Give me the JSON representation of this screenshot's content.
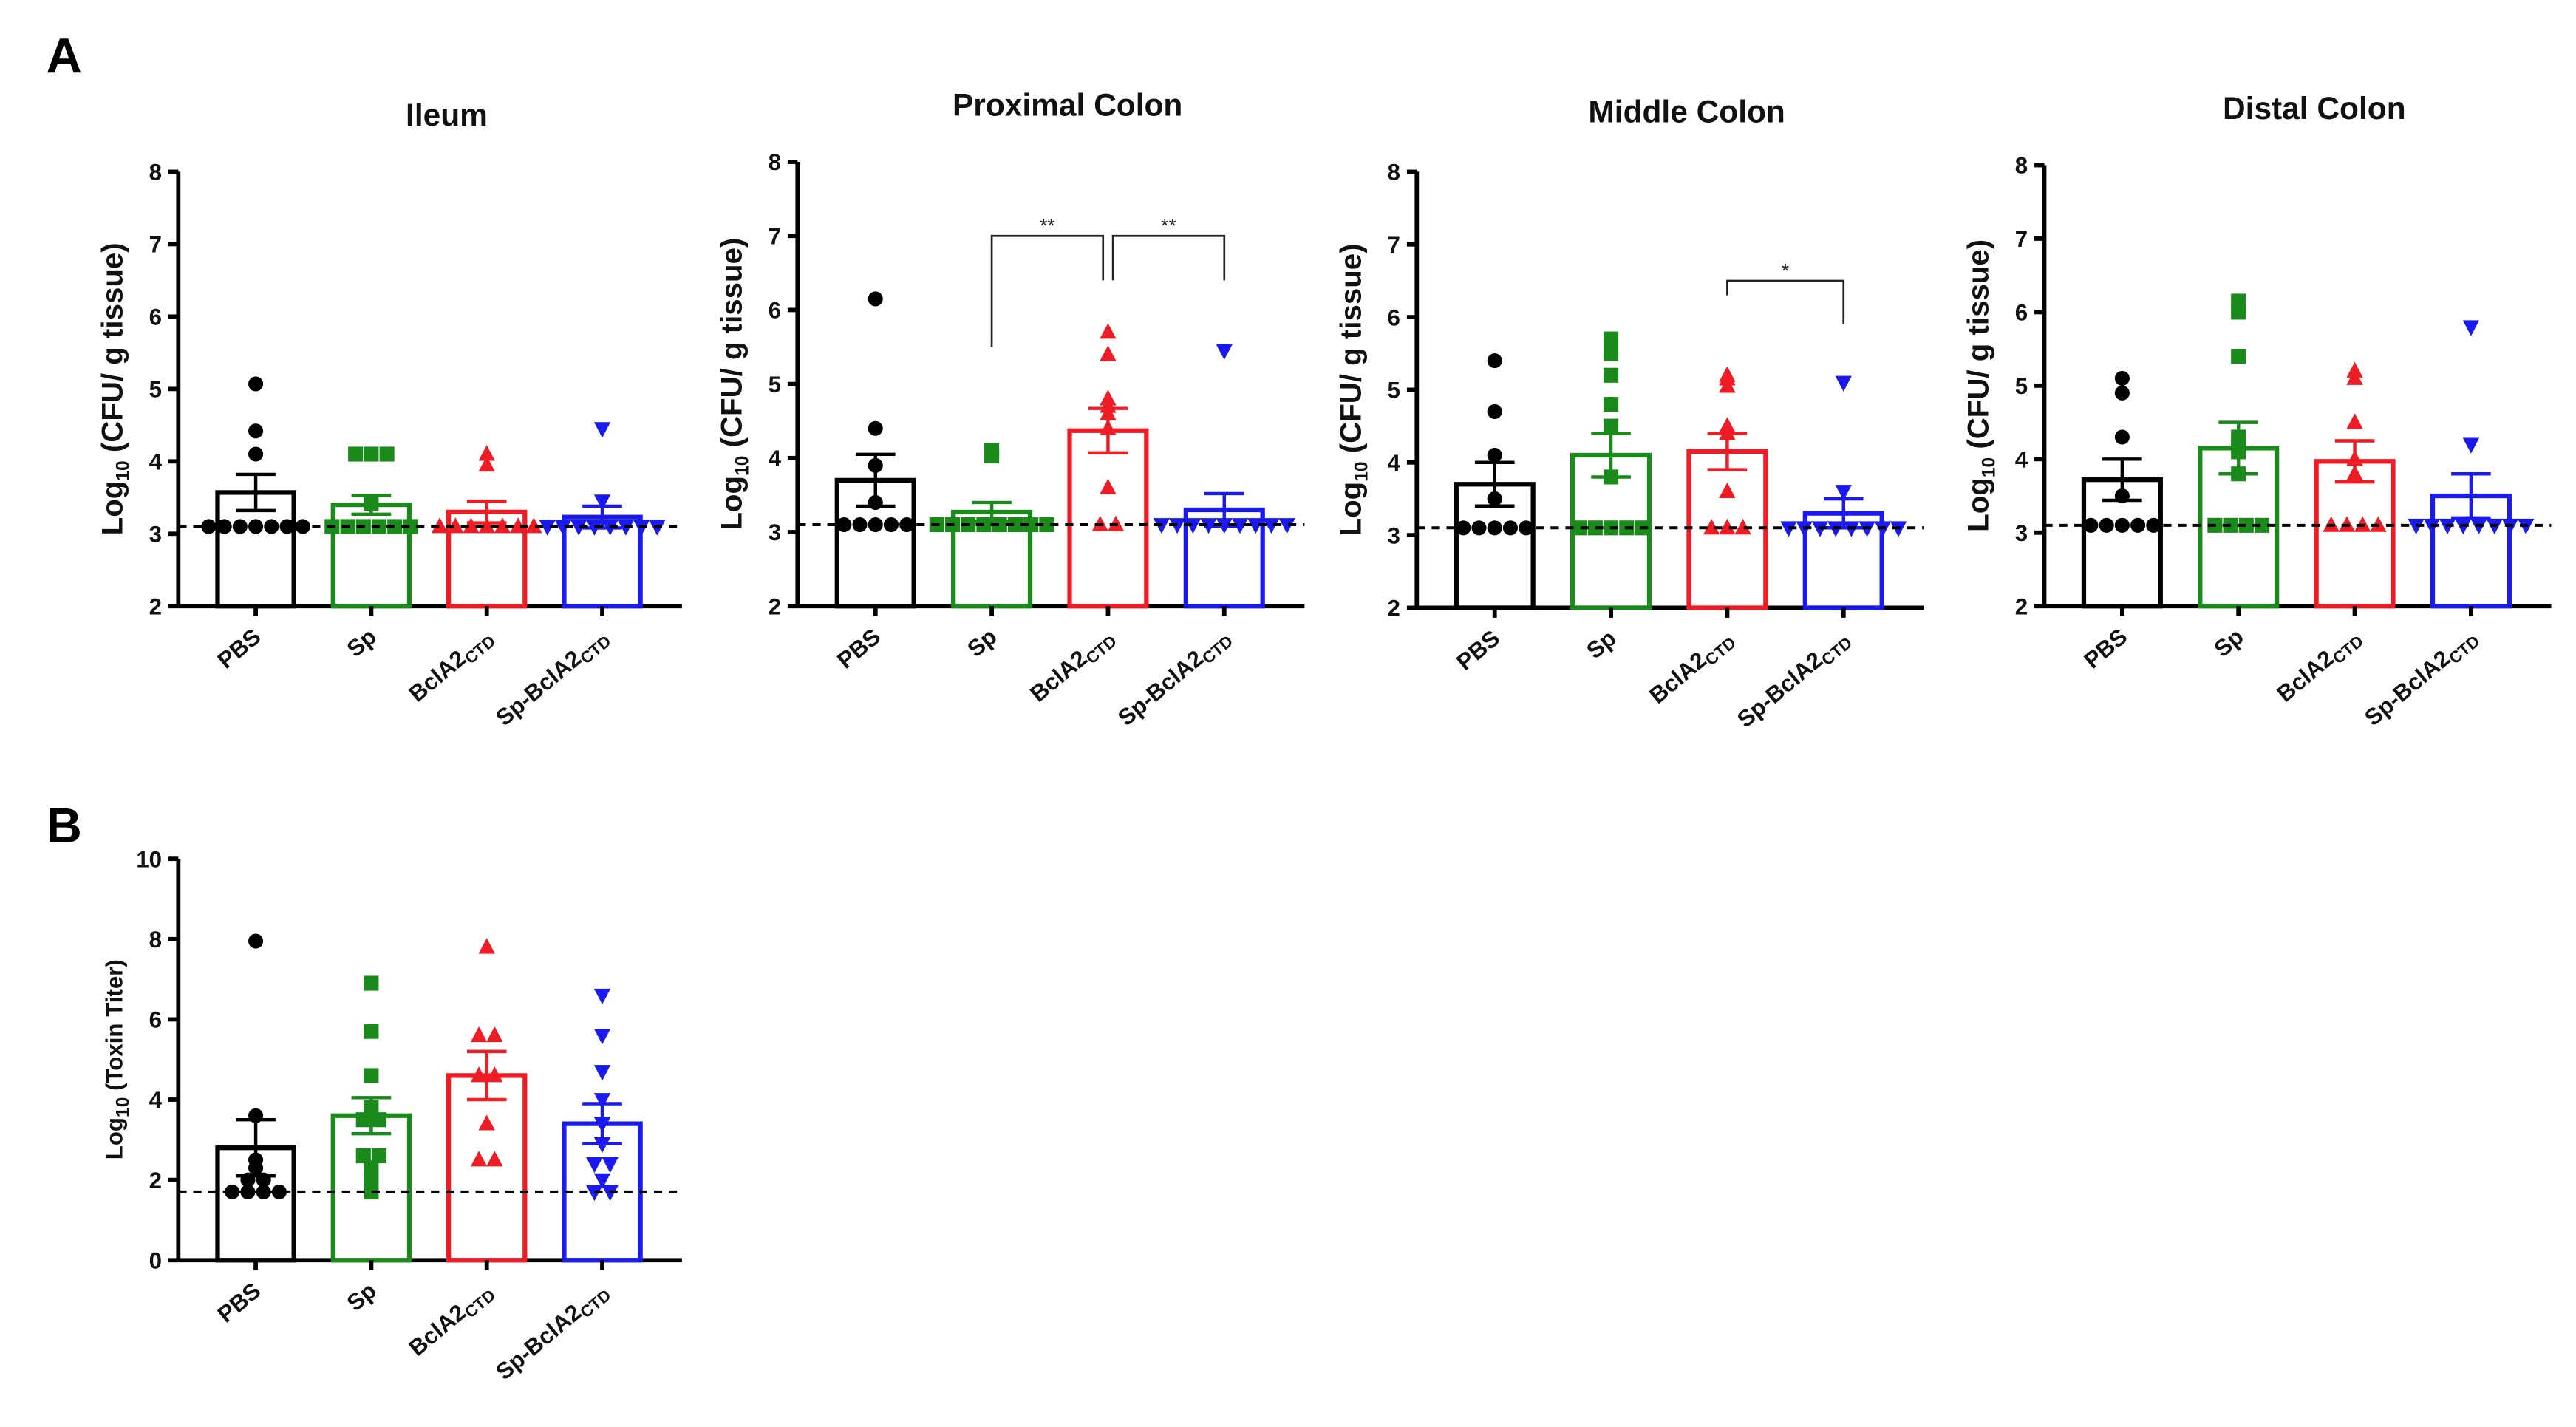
{
  "panel_labels": [
    "A",
    "B"
  ],
  "colors": {
    "PBS": "#000000",
    "Sp": "#1a8a1a",
    "BclA2CTD": "#ee1c25",
    "Sp-BclA2CTD": "#1a1aee"
  },
  "markers": {
    "PBS": "circle",
    "Sp": "square",
    "BclA2CTD": "triangle-up",
    "Sp-BclA2CTD": "triangle-down"
  },
  "chart_data": [
    {
      "type": "bar",
      "panel": "A",
      "title": "Ileum",
      "ylabel": {
        "main": "Log",
        "sub": "10",
        "rest": " (CFU/ g tissue)"
      },
      "ylim": [
        2,
        8
      ],
      "yticks": [
        2,
        3,
        4,
        5,
        6,
        7,
        8
      ],
      "detection_limit": 3.1,
      "categories": [
        {
          "main": "PBS",
          "sub": ""
        },
        {
          "main": "Sp",
          "sub": ""
        },
        {
          "main": "BclA2",
          "sub": "CTD"
        },
        {
          "main": "Sp-BclA2",
          "sub": "CTD"
        }
      ],
      "series": [
        {
          "name": "PBS",
          "mean": 3.57,
          "sem": 0.25,
          "points": [
            5.07,
            4.42,
            4.1,
            3.1,
            3.1,
            3.1,
            3.1,
            3.1,
            3.1,
            3.1
          ]
        },
        {
          "name": "Sp",
          "mean": 3.4,
          "sem": 0.13,
          "points": [
            4.1,
            4.1,
            4.1,
            3.42,
            3.1,
            3.1,
            3.1,
            3.1,
            3.1,
            3.1
          ]
        },
        {
          "name": "BclA2CTD",
          "mean": 3.3,
          "sem": 0.15,
          "points": [
            4.1,
            3.95,
            3.1,
            3.1,
            3.1,
            3.1,
            3.1,
            3.1,
            3.1
          ]
        },
        {
          "name": "Sp-BclA2CTD",
          "mean": 3.23,
          "sem": 0.15,
          "points": [
            4.45,
            3.45,
            3.1,
            3.1,
            3.1,
            3.1,
            3.1,
            3.1,
            3.1,
            3.1
          ]
        }
      ],
      "significance": []
    },
    {
      "type": "bar",
      "panel": "A",
      "title": "Proximal Colon",
      "ylabel": {
        "main": "Log",
        "sub": "10",
        "rest": " (CFU/ g tissue)"
      },
      "ylim": [
        2,
        8
      ],
      "yticks": [
        2,
        3,
        4,
        5,
        6,
        7,
        8
      ],
      "detection_limit": 3.1,
      "categories": [
        {
          "main": "PBS",
          "sub": ""
        },
        {
          "main": "Sp",
          "sub": ""
        },
        {
          "main": "BclA2",
          "sub": "CTD"
        },
        {
          "main": "Sp-BclA2",
          "sub": "CTD"
        }
      ],
      "series": [
        {
          "name": "PBS",
          "mean": 3.7,
          "sem": 0.35,
          "points": [
            6.15,
            4.4,
            3.9,
            3.4,
            3.1,
            3.1,
            3.1,
            3.1,
            3.1
          ]
        },
        {
          "name": "Sp",
          "mean": 3.27,
          "sem": 0.13,
          "points": [
            4.1,
            4.03,
            3.1,
            3.1,
            3.1,
            3.1,
            3.1,
            3.1,
            3.1,
            3.1
          ]
        },
        {
          "name": "BclA2CTD",
          "mean": 4.37,
          "sem": 0.3,
          "points": [
            5.7,
            5.4,
            4.8,
            4.7,
            4.6,
            4.4,
            3.6,
            3.1,
            3.1
          ]
        },
        {
          "name": "Sp-BclA2CTD",
          "mean": 3.3,
          "sem": 0.22,
          "points": [
            5.45,
            3.1,
            3.1,
            3.1,
            3.1,
            3.1,
            3.1,
            3.1,
            3.1,
            3.1
          ]
        }
      ],
      "significance": [
        {
          "from": 1,
          "to": 2,
          "label": "**",
          "y": 7.0,
          "left_drop": 5.5,
          "right_drop": 6.4
        },
        {
          "from": 2,
          "to": 3,
          "label": "**",
          "y": 7.0,
          "left_drop": 6.4,
          "right_drop": 6.4
        }
      ]
    },
    {
      "type": "bar",
      "panel": "A",
      "title": "Middle Colon",
      "ylabel": {
        "main": "Log",
        "sub": "10",
        "rest": " (CFU/ g tissue)"
      },
      "ylim": [
        2,
        8
      ],
      "yticks": [
        2,
        3,
        4,
        5,
        6,
        7,
        8
      ],
      "detection_limit": 3.1,
      "categories": [
        {
          "main": "PBS",
          "sub": ""
        },
        {
          "main": "Sp",
          "sub": ""
        },
        {
          "main": "BclA2",
          "sub": "CTD"
        },
        {
          "main": "Sp-BclA2",
          "sub": "CTD"
        }
      ],
      "series": [
        {
          "name": "PBS",
          "mean": 3.7,
          "sem": 0.3,
          "points": [
            5.4,
            4.7,
            4.1,
            3.5,
            3.1,
            3.1,
            3.1,
            3.1,
            3.1
          ]
        },
        {
          "name": "Sp",
          "mean": 4.1,
          "sem": 0.3,
          "points": [
            5.7,
            5.5,
            5.2,
            4.8,
            4.5,
            3.8,
            3.1,
            3.1,
            3.1,
            3.1,
            3.1
          ]
        },
        {
          "name": "BclA2CTD",
          "mean": 4.15,
          "sem": 0.25,
          "points": [
            5.2,
            5.15,
            5.05,
            4.5,
            4.4,
            3.6,
            3.1,
            3.1,
            3.1
          ]
        },
        {
          "name": "Sp-BclA2CTD",
          "mean": 3.3,
          "sem": 0.2,
          "points": [
            5.1,
            3.6,
            3.1,
            3.1,
            3.1,
            3.1,
            3.1,
            3.1,
            3.1,
            3.1
          ]
        }
      ],
      "significance": [
        {
          "from": 2,
          "to": 3,
          "label": "*",
          "y": 6.5,
          "left_drop": 6.3,
          "right_drop": 5.9
        }
      ]
    },
    {
      "type": "bar",
      "panel": "A",
      "title": "Distal Colon",
      "ylabel": {
        "main": "Log",
        "sub": "10",
        "rest": " (CFU/ g tissue)"
      },
      "ylim": [
        2,
        8
      ],
      "yticks": [
        2,
        3,
        4,
        5,
        6,
        7,
        8
      ],
      "detection_limit": 3.1,
      "categories": [
        {
          "main": "PBS",
          "sub": ""
        },
        {
          "main": "Sp",
          "sub": ""
        },
        {
          "main": "BclA2",
          "sub": "CTD"
        },
        {
          "main": "Sp-BclA2",
          "sub": "CTD"
        }
      ],
      "series": [
        {
          "name": "PBS",
          "mean": 3.72,
          "sem": 0.28,
          "points": [
            5.1,
            4.9,
            4.3,
            3.5,
            3.1,
            3.1,
            3.1,
            3.1,
            3.1
          ]
        },
        {
          "name": "Sp",
          "mean": 4.15,
          "sem": 0.35,
          "points": [
            6.15,
            6.0,
            5.4,
            4.3,
            4.2,
            4.1,
            3.8,
            3.1,
            3.1,
            3.1,
            3.1
          ]
        },
        {
          "name": "BclA2CTD",
          "mean": 3.97,
          "sem": 0.28,
          "points": [
            5.2,
            5.1,
            4.5,
            4.0,
            3.8,
            3.1,
            3.1,
            3.1,
            3.1
          ]
        },
        {
          "name": "Sp-BclA2CTD",
          "mean": 3.5,
          "sem": 0.3,
          "points": [
            5.8,
            4.2,
            3.1,
            3.1,
            3.1,
            3.1,
            3.1,
            3.1,
            3.1,
            3.1
          ]
        }
      ],
      "significance": []
    },
    {
      "type": "bar",
      "panel": "B",
      "title": "",
      "ylabel": {
        "main": "Log",
        "sub": "10",
        "rest": " (Toxin Titer)"
      },
      "ylim": [
        0,
        10
      ],
      "yticks": [
        0,
        2,
        4,
        6,
        8,
        10
      ],
      "detection_limit": 1.7,
      "categories": [
        {
          "main": "PBS",
          "sub": ""
        },
        {
          "main": "Sp",
          "sub": ""
        },
        {
          "main": "BclA2",
          "sub": "CTD"
        },
        {
          "main": "Sp-BclA2",
          "sub": "CTD"
        }
      ],
      "series": [
        {
          "name": "PBS",
          "mean": 2.8,
          "sem": 0.7,
          "points": [
            7.95,
            3.6,
            2.5,
            2.3,
            2.0,
            2.0,
            1.7,
            1.7,
            1.7,
            1.7
          ]
        },
        {
          "name": "Sp",
          "mean": 3.6,
          "sem": 0.45,
          "points": [
            6.9,
            5.7,
            4.6,
            3.8,
            3.5,
            3.5,
            2.6,
            2.6,
            2.3,
            2.0,
            1.7
          ]
        },
        {
          "name": "BclA2CTD",
          "mean": 4.6,
          "sem": 0.6,
          "points": [
            7.8,
            5.6,
            5.6,
            4.6,
            4.6,
            3.4,
            2.5,
            2.5
          ]
        },
        {
          "name": "Sp-BclA2CTD",
          "mean": 3.4,
          "sem": 0.5,
          "points": [
            6.6,
            5.6,
            4.7,
            4.0,
            3.4,
            2.9,
            2.4,
            2.4,
            2.0,
            1.7,
            1.7
          ]
        }
      ],
      "significance": []
    }
  ]
}
